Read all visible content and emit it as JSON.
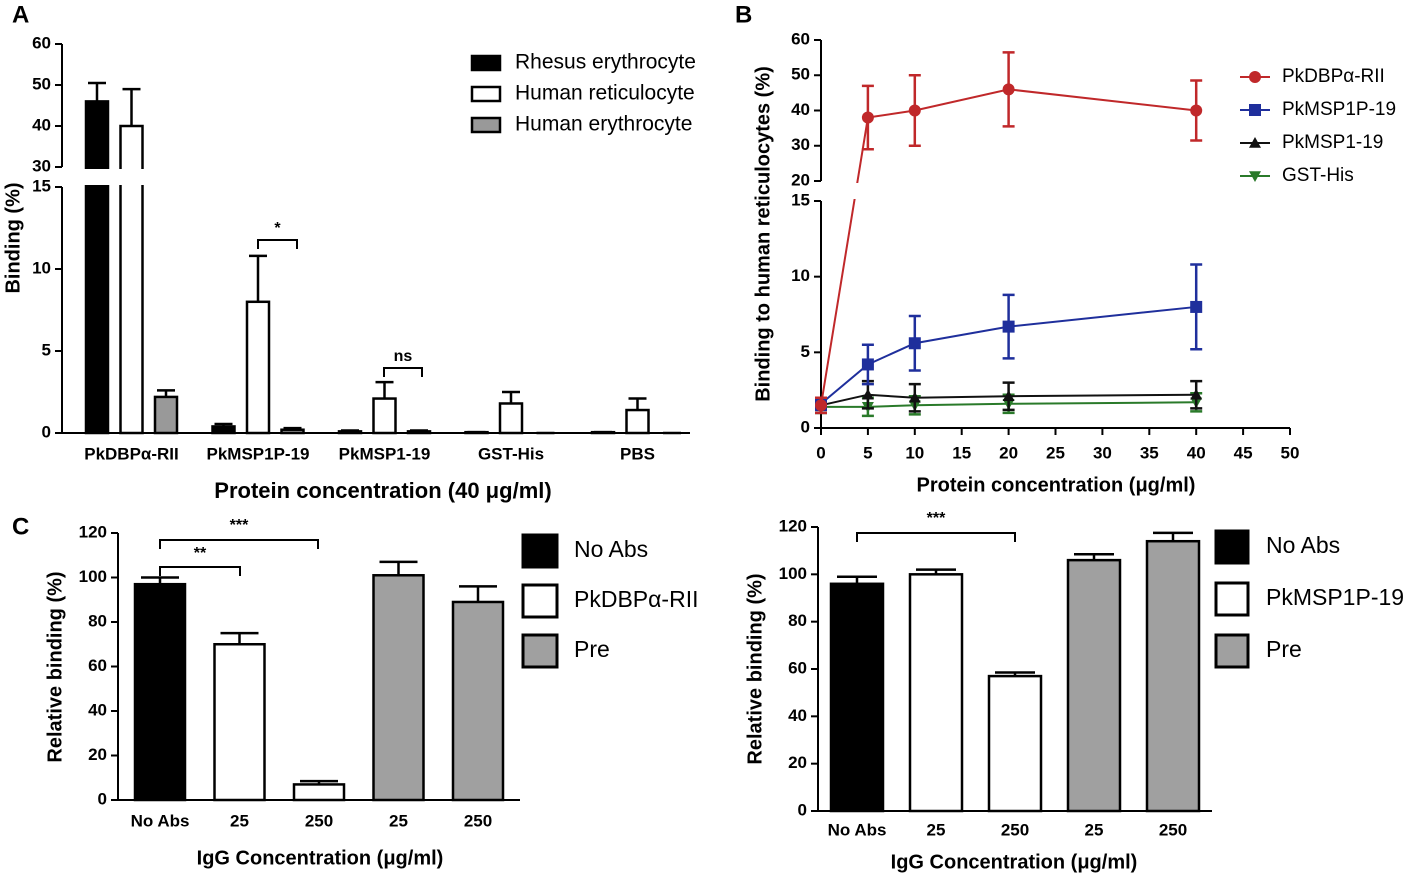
{
  "chart_data": [
    {
      "type": "bar",
      "panel": "A",
      "ylabel": "Binding (%)",
      "xlabel": "Protein concentration (40 μg/ml)",
      "categories": [
        "PkDBPα-RII",
        "PkMSP1P-19",
        "PkMSP1-19",
        "GST-His",
        "PBS"
      ],
      "series": [
        {
          "name": "Rhesus erythrocyte",
          "color": "#000000",
          "values": [
            46,
            0.4,
            0.1,
            0.05,
            0.05
          ],
          "errors": [
            4.5,
            0.15,
            0.05,
            0,
            0
          ]
        },
        {
          "name": "Human reticulocyte",
          "color": "#ffffff",
          "values": [
            40,
            8,
            2.1,
            1.8,
            1.4
          ],
          "errors": [
            9,
            2.8,
            1,
            0.7,
            0.7
          ]
        },
        {
          "name": "Human erythrocyte",
          "color": "#999999",
          "values": [
            2.2,
            0.2,
            0.1,
            0,
            0
          ],
          "errors": [
            0.4,
            0.1,
            0.05,
            0,
            0
          ]
        }
      ],
      "ylim": [
        0,
        60
      ],
      "yticks": [
        0,
        5,
        10,
        15,
        30,
        40,
        50,
        60
      ],
      "axis_break": [
        15,
        30
      ],
      "annotations": [
        "*",
        "ns"
      ],
      "legend_position": "upper right"
    },
    {
      "type": "line",
      "panel": "B",
      "ylabel": "Binding to human reticulocytes (%)",
      "xlabel": "Protein concentration (μg/ml)",
      "x": [
        0,
        5,
        10,
        20,
        40
      ],
      "series": [
        {
          "name": "PkDBPα-RII",
          "color": "#c0282a",
          "marker": "circle",
          "values": [
            1.5,
            38,
            40,
            46,
            40
          ],
          "errors": [
            0.5,
            9,
            10,
            10.5,
            8.5
          ]
        },
        {
          "name": "PkMSP1P-19",
          "color": "#1f2f9c",
          "marker": "square",
          "values": [
            1.6,
            4.2,
            5.6,
            6.7,
            8.0
          ],
          "errors": [
            0.4,
            1.3,
            1.8,
            2.1,
            2.8
          ]
        },
        {
          "name": "PkMSP1-19",
          "color": "#111111",
          "marker": "triangle",
          "values": [
            1.5,
            2.2,
            2.0,
            2.1,
            2.2
          ],
          "errors": [
            0.5,
            0.9,
            0.9,
            0.9,
            0.9
          ]
        },
        {
          "name": "GST-His",
          "color": "#2a7a2a",
          "marker": "triangle-down",
          "values": [
            1.4,
            1.4,
            1.5,
            1.6,
            1.7
          ],
          "errors": [
            0.4,
            0.6,
            0.6,
            0.6,
            0.6
          ]
        }
      ],
      "xlim": [
        0,
        50
      ],
      "xticks": [
        0,
        5,
        10,
        15,
        20,
        25,
        30,
        35,
        40,
        45,
        50
      ],
      "ylim": [
        0,
        60
      ],
      "yticks": [
        0,
        5,
        10,
        15,
        20,
        30,
        40,
        50,
        60
      ],
      "axis_break": [
        15,
        20
      ],
      "legend_position": "upper right"
    },
    {
      "type": "bar",
      "panel": "C",
      "ylabel": "Relative binding (%)",
      "xlabel": "IgG Concentration (μg/ml)",
      "categories": [
        "No Abs",
        "25",
        "250",
        "25",
        "250"
      ],
      "values": [
        97,
        70,
        7,
        101,
        89
      ],
      "errors": [
        3,
        5,
        1.5,
        6,
        7
      ],
      "colors": [
        "#000000",
        "#ffffff",
        "#ffffff",
        "#a0a0a0",
        "#a0a0a0"
      ],
      "legend": [
        {
          "name": "No Abs",
          "color": "#000000"
        },
        {
          "name": "PkDBPα-RII",
          "color": "#ffffff"
        },
        {
          "name": "Pre",
          "color": "#a0a0a0"
        }
      ],
      "ylim": [
        0,
        120
      ],
      "yticks": [
        0,
        20,
        40,
        60,
        80,
        100,
        120
      ],
      "annotations": [
        "**",
        "***"
      ],
      "legend_position": "right"
    },
    {
      "type": "bar",
      "ylabel": "Relative binding (%)",
      "xlabel": "IgG Concentration (μg/ml)",
      "categories": [
        "No Abs",
        "25",
        "250",
        "25",
        "250"
      ],
      "values": [
        96,
        100,
        57,
        106,
        114
      ],
      "errors": [
        3,
        2,
        1.5,
        2.5,
        3.5
      ],
      "colors": [
        "#000000",
        "#ffffff",
        "#ffffff",
        "#a0a0a0",
        "#a0a0a0"
      ],
      "legend": [
        {
          "name": "No Abs",
          "color": "#000000"
        },
        {
          "name": "PkMSP1P-19",
          "color": "#ffffff"
        },
        {
          "name": "Pre",
          "color": "#a0a0a0"
        }
      ],
      "ylim": [
        0,
        120
      ],
      "yticks": [
        0,
        20,
        40,
        60,
        80,
        100,
        120
      ],
      "annotations": [
        "***"
      ],
      "legend_position": "right"
    }
  ]
}
